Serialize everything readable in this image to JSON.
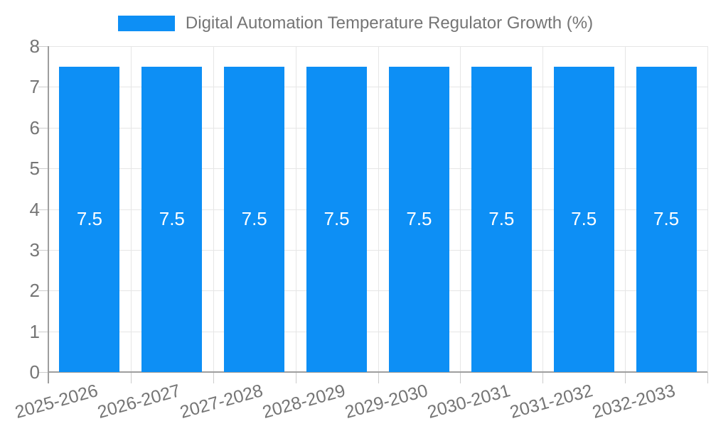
{
  "legend": {
    "label": "Digital Automation Temperature Regulator Growth (%)",
    "swatch_color": "#0d8ff5"
  },
  "chart_data": {
    "type": "bar",
    "title": "Digital Automation Temperature Regulator Growth (%)",
    "categories": [
      "2025-2026",
      "2026-2027",
      "2027-2028",
      "2028-2029",
      "2029-2030",
      "2030-2031",
      "2031-2032",
      "2032-2033"
    ],
    "values": [
      7.5,
      7.5,
      7.5,
      7.5,
      7.5,
      7.5,
      7.5,
      7.5
    ],
    "bar_labels": [
      "7.5",
      "7.5",
      "7.5",
      "7.5",
      "7.5",
      "7.5",
      "7.5",
      "7.5"
    ],
    "xlabel": "",
    "ylabel": "",
    "ylim": [
      0,
      8
    ],
    "y_ticks": [
      0,
      1,
      2,
      3,
      4,
      5,
      6,
      7,
      8
    ],
    "grid": true,
    "legend_position": "top",
    "colors": {
      "bar": "#0d8ff5",
      "bar_label_text": "#ffffff",
      "axis_text": "#757575",
      "gridline": "#e6e6e6",
      "axis_line": "#9e9e9e",
      "background": "#ffffff"
    }
  }
}
